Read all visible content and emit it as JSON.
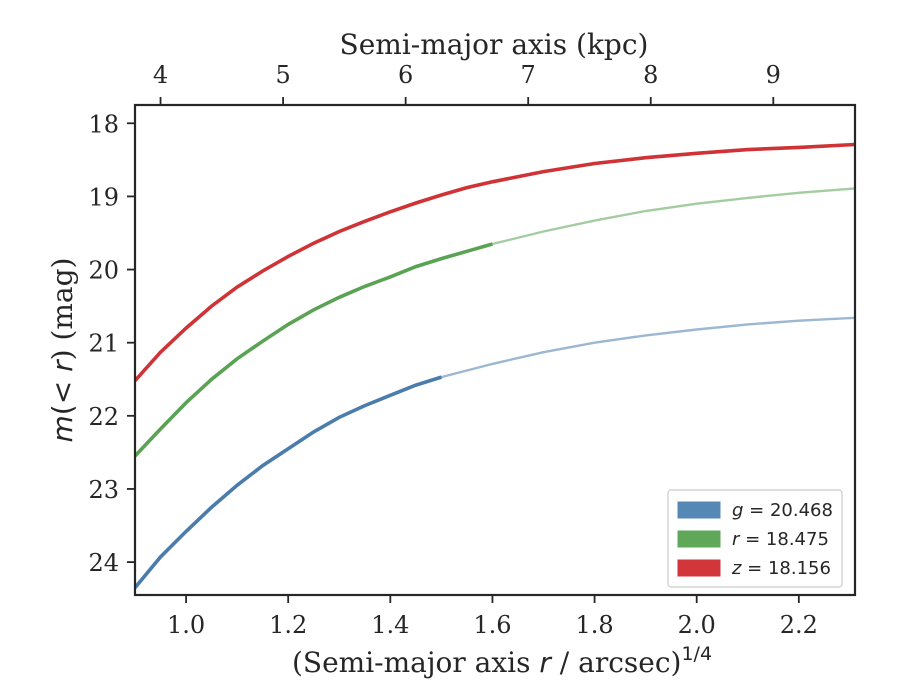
{
  "chart_data": {
    "type": "line",
    "xlabel_parts": [
      "(Semi-major axis ",
      "r",
      " / arcsec)",
      "1/4"
    ],
    "ylabel_parts": [
      "m",
      "(< ",
      "r",
      ") (mag)"
    ],
    "top_xlabel": "Semi-major axis (kpc)",
    "xlim": [
      0.9,
      2.31
    ],
    "ylim": [
      24.45,
      17.75
    ],
    "y_inverted": true,
    "x_ticks": [
      1.0,
      1.2,
      1.4,
      1.6,
      1.8,
      2.0,
      2.2
    ],
    "x_tick_labels": [
      "1.0",
      "1.2",
      "1.4",
      "1.6",
      "1.8",
      "2.0",
      "2.2"
    ],
    "y_ticks": [
      18,
      19,
      20,
      21,
      22,
      23,
      24
    ],
    "y_tick_labels": [
      "18",
      "19",
      "20",
      "21",
      "22",
      "23",
      "24"
    ],
    "top_ticks_kpc": [
      4,
      5,
      6,
      7,
      8,
      9
    ],
    "top_tick_labels": [
      "4",
      "5",
      "6",
      "7",
      "8",
      "9"
    ],
    "top_axis_x_at_kpc": [
      0.95,
      1.19,
      1.43,
      1.67,
      1.91,
      2.15
    ],
    "grid": false,
    "legend_position": "lower right",
    "legend": [
      {
        "label_parts": [
          "g",
          " = 20.468"
        ],
        "color": "#5588b5"
      },
      {
        "label_parts": [
          "r",
          " = 18.475"
        ],
        "color": "#5fa85a"
      },
      {
        "label_parts": [
          "z",
          " = 18.156"
        ],
        "color": "#d2363a"
      }
    ],
    "series": [
      {
        "name": "g",
        "color": "#4a7cac",
        "x": [
          0.9,
          0.95,
          1.0,
          1.05,
          1.1,
          1.15,
          1.2,
          1.25,
          1.3,
          1.35,
          1.4,
          1.45,
          1.5,
          1.55,
          1.6,
          1.7,
          1.8,
          1.9,
          2.0,
          2.1,
          2.2,
          2.31
        ],
        "y": [
          24.35,
          23.93,
          23.58,
          23.25,
          22.95,
          22.68,
          22.45,
          22.22,
          22.02,
          21.86,
          21.72,
          21.58,
          21.47,
          21.38,
          21.29,
          21.13,
          21.0,
          20.9,
          20.82,
          20.75,
          20.7,
          20.66
        ],
        "bold_until_x": 1.5
      },
      {
        "name": "r",
        "color": "#5aa354",
        "x": [
          0.9,
          0.95,
          1.0,
          1.05,
          1.1,
          1.15,
          1.2,
          1.25,
          1.3,
          1.35,
          1.4,
          1.45,
          1.5,
          1.55,
          1.6,
          1.7,
          1.8,
          1.9,
          2.0,
          2.1,
          2.2,
          2.31
        ],
        "y": [
          22.55,
          22.18,
          21.82,
          21.5,
          21.22,
          20.98,
          20.75,
          20.55,
          20.38,
          20.23,
          20.1,
          19.96,
          19.85,
          19.75,
          19.65,
          19.48,
          19.33,
          19.2,
          19.1,
          19.02,
          18.95,
          18.89
        ],
        "bold_until_x": 1.6
      },
      {
        "name": "z",
        "color": "#cf3336",
        "x": [
          0.9,
          0.95,
          1.0,
          1.05,
          1.1,
          1.15,
          1.2,
          1.25,
          1.3,
          1.35,
          1.4,
          1.45,
          1.5,
          1.55,
          1.6,
          1.7,
          1.8,
          1.9,
          2.0,
          2.1,
          2.2,
          2.31
        ],
        "y": [
          21.52,
          21.13,
          20.8,
          20.5,
          20.24,
          20.02,
          19.82,
          19.64,
          19.48,
          19.34,
          19.21,
          19.09,
          18.98,
          18.88,
          18.8,
          18.66,
          18.55,
          18.47,
          18.41,
          18.36,
          18.33,
          18.29
        ],
        "bold_until_x": 2.31
      }
    ]
  }
}
